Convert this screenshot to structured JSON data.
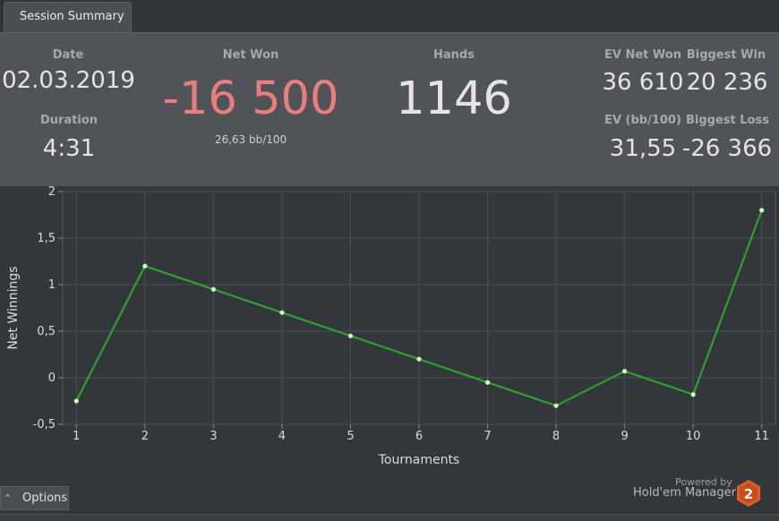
{
  "tab": {
    "label": "Session Summary"
  },
  "summary": {
    "date_label": "Date",
    "date_value": "02.03.2019",
    "duration_label": "Duration",
    "duration_value": "4:31",
    "net_won_label": "Net Won",
    "net_won_value": "-16 500",
    "net_won_sub": "26,63 bb/100",
    "hands_label": "Hands",
    "hands_value": "1146",
    "ev_net_won_label": "EV Net Won",
    "ev_net_won_value": "36 610",
    "biggest_win_label": "Biggest Win",
    "biggest_win_value": "20 236",
    "ev_bb_label": "EV (bb/100)",
    "ev_bb_value": "31,55",
    "biggest_loss_label": "Biggest Loss",
    "biggest_loss_value": "-26 366"
  },
  "colors": {
    "negative": "#ec7d7e",
    "line": "#2ea12e",
    "point": "#cfffc9"
  },
  "chart_data": {
    "type": "line",
    "xlabel": "Tournaments",
    "ylabel": "Net Winnings",
    "x": [
      1,
      2,
      3,
      4,
      5,
      6,
      7,
      8,
      9,
      10,
      11
    ],
    "series": [
      {
        "values": [
          -0.25,
          1.2,
          0.95,
          0.7,
          0.45,
          0.2,
          -0.05,
          -0.3,
          0.07,
          -0.18,
          1.8
        ]
      }
    ],
    "xlim": [
      0.8,
      11.2
    ],
    "ylim": [
      -0.5,
      2
    ],
    "x_ticks": [
      "1",
      "2",
      "3",
      "4",
      "5",
      "6",
      "7",
      "8",
      "9",
      "10",
      "11"
    ],
    "y_ticks": [
      "-0,5",
      "0",
      "0,5",
      "1",
      "1,5",
      "2"
    ],
    "grid": true
  },
  "footer": {
    "options_label": "Options",
    "options_icon": "chevron-up-icon",
    "powered_by": "Powered by",
    "brand": "Hold'em Manager",
    "logo_text": "2"
  }
}
